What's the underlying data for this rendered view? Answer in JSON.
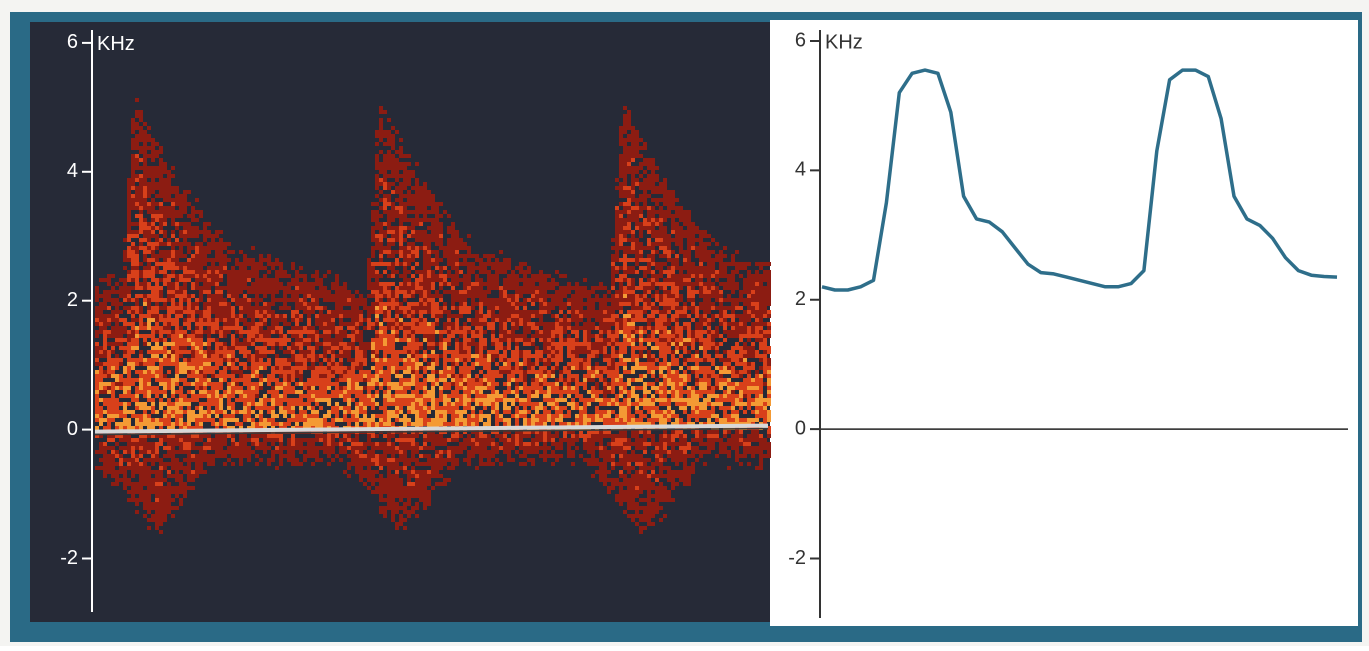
{
  "chart_data": [
    {
      "type": "spectrogram",
      "y_label": "KHz",
      "ylim": [
        -2.83,
        6.2
      ],
      "yticks": [
        6,
        4,
        2,
        0,
        -2
      ]
    },
    {
      "type": "line",
      "y_label": "KHz",
      "ylim": [
        -2.92,
        6.17
      ],
      "yticks": [
        6,
        4,
        2,
        0,
        -2
      ],
      "series": [
        {
          "color": "#2e6e8a",
          "values": [
            2.2,
            2.15,
            2.15,
            2.2,
            2.3,
            3.5,
            5.2,
            5.5,
            5.55,
            5.5,
            4.9,
            3.6,
            3.25,
            3.2,
            3.05,
            2.8,
            2.55,
            2.42,
            2.4,
            2.35,
            2.3,
            2.25,
            2.2,
            2.2,
            2.25,
            2.45,
            4.3,
            5.4,
            5.55,
            5.55,
            5.45,
            4.8,
            3.6,
            3.25,
            3.15,
            2.95,
            2.65,
            2.45,
            2.38,
            2.36,
            2.35
          ]
        }
      ]
    }
  ]
}
